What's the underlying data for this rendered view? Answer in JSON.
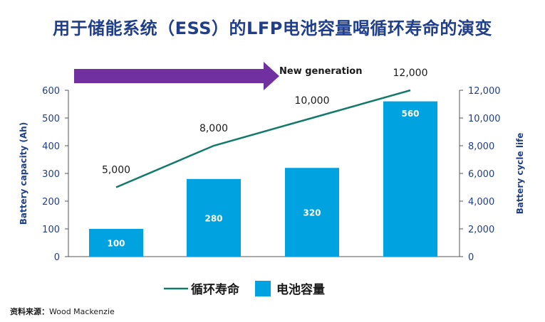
{
  "title": "用于储能系统（ESS）的LFP电池容量喝循环寿命的演变",
  "arrow_label": "New generation",
  "source": {
    "label": "资料来源：",
    "value": "Wood Mackenzie"
  },
  "colors": {
    "title": "#1f3e8c",
    "bar": "#00a3e0",
    "line": "#137a6a",
    "arrow": "#7030a0",
    "axis_text": "#1f3e8c"
  },
  "chart_data": {
    "type": "bar",
    "categories": [
      "",
      "",
      "",
      ""
    ],
    "series": [
      {
        "name": "电池容量",
        "type": "bar",
        "axis": "left",
        "values": [
          100,
          280,
          320,
          560
        ],
        "labels": [
          "100",
          "280",
          "320",
          "560"
        ]
      },
      {
        "name": "循环寿命",
        "type": "line",
        "axis": "right",
        "values": [
          5000,
          8000,
          10000,
          12000
        ],
        "labels": [
          "5,000",
          "8,000",
          "10,000",
          "12,000"
        ]
      }
    ],
    "y_left": {
      "label": "Battery capacity (Ah)",
      "range": [
        0,
        600
      ],
      "ticks": [
        "0",
        "100",
        "200",
        "300",
        "400",
        "500",
        "600"
      ]
    },
    "y_right": {
      "label": "Battery cycle life",
      "range": [
        0,
        12000
      ],
      "ticks": [
        "0",
        "2,000",
        "4,000",
        "6,000",
        "8,000",
        "10,000",
        "12,000"
      ]
    },
    "legend": {
      "placement": "bottom-center",
      "entries": [
        "循环寿命",
        "电池容量"
      ]
    },
    "grid": false
  }
}
